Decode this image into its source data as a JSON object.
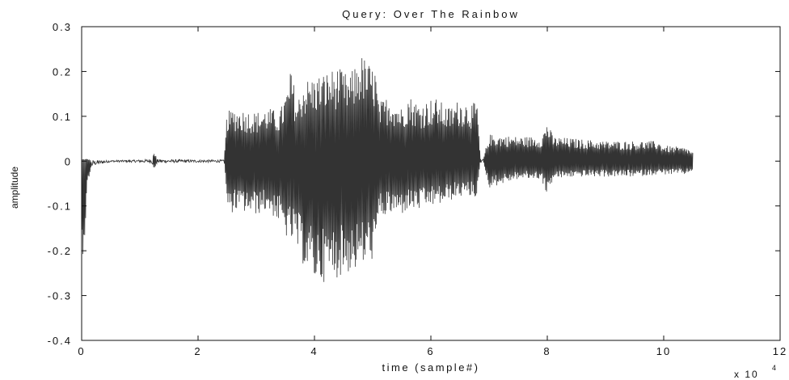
{
  "chart_data": {
    "type": "line",
    "title": "Query: Over The Rainbow",
    "xlabel": "time (sample#)",
    "ylabel": "amplitude",
    "x_multiplier_label": "x 10",
    "x_multiplier_exponent": "4",
    "xlim": [
      0,
      12
    ],
    "ylim": [
      -0.4,
      0.3
    ],
    "xticks": [
      0,
      2,
      4,
      6,
      8,
      10,
      12
    ],
    "xtick_labels": [
      "0",
      "2",
      "4",
      "6",
      "8",
      "10",
      "12"
    ],
    "yticks": [
      -0.4,
      -0.3,
      -0.2,
      -0.1,
      0,
      0.1,
      0.2,
      0.3
    ],
    "ytick_labels": [
      "-0.4",
      "-0.3",
      "-0.2",
      "-0.1",
      "0",
      "0.1",
      "0.2",
      "0.3"
    ],
    "grid": false,
    "series_color": "#333333",
    "envelope": {
      "x": [
        0.0,
        0.05,
        0.1,
        0.15,
        0.2,
        0.5,
        1.0,
        1.2,
        1.25,
        1.3,
        2.0,
        2.45,
        2.5,
        2.55,
        2.6,
        3.0,
        3.2,
        3.4,
        3.55,
        3.6,
        3.7,
        3.8,
        4.0,
        4.2,
        4.4,
        4.6,
        4.8,
        5.0,
        5.05,
        5.1,
        5.3,
        5.5,
        5.6,
        5.8,
        6.0,
        6.1,
        6.3,
        6.5,
        6.7,
        6.8,
        6.85,
        6.9,
        7.0,
        7.5,
        7.9,
        8.0,
        8.1,
        8.5,
        9.0,
        9.5,
        9.9,
        10.0,
        10.4,
        10.5
      ],
      "upper": [
        0.005,
        0.005,
        0.005,
        0.003,
        0.002,
        0.002,
        0.003,
        0.005,
        0.02,
        0.004,
        0.003,
        0.003,
        0.12,
        0.11,
        0.12,
        0.11,
        0.12,
        0.11,
        0.17,
        0.21,
        0.13,
        0.18,
        0.19,
        0.2,
        0.21,
        0.19,
        0.24,
        0.21,
        0.21,
        0.13,
        0.15,
        0.12,
        0.15,
        0.13,
        0.14,
        0.14,
        0.12,
        0.14,
        0.13,
        0.13,
        0.005,
        0.005,
        0.06,
        0.055,
        0.055,
        0.09,
        0.055,
        0.05,
        0.045,
        0.045,
        0.045,
        0.035,
        0.03,
        0.02
      ],
      "lower": [
        -0.23,
        -0.18,
        -0.06,
        -0.02,
        -0.01,
        -0.002,
        -0.003,
        -0.004,
        -0.02,
        -0.004,
        -0.003,
        -0.003,
        -0.1,
        -0.13,
        -0.11,
        -0.12,
        -0.11,
        -0.14,
        -0.18,
        -0.18,
        -0.2,
        -0.23,
        -0.27,
        -0.27,
        -0.26,
        -0.25,
        -0.24,
        -0.22,
        -0.22,
        -0.13,
        -0.12,
        -0.12,
        -0.11,
        -0.11,
        -0.1,
        -0.1,
        -0.09,
        -0.08,
        -0.08,
        -0.08,
        -0.005,
        -0.005,
        -0.06,
        -0.04,
        -0.04,
        -0.08,
        -0.04,
        -0.035,
        -0.035,
        -0.035,
        -0.03,
        -0.03,
        -0.03,
        -0.02
      ]
    }
  }
}
